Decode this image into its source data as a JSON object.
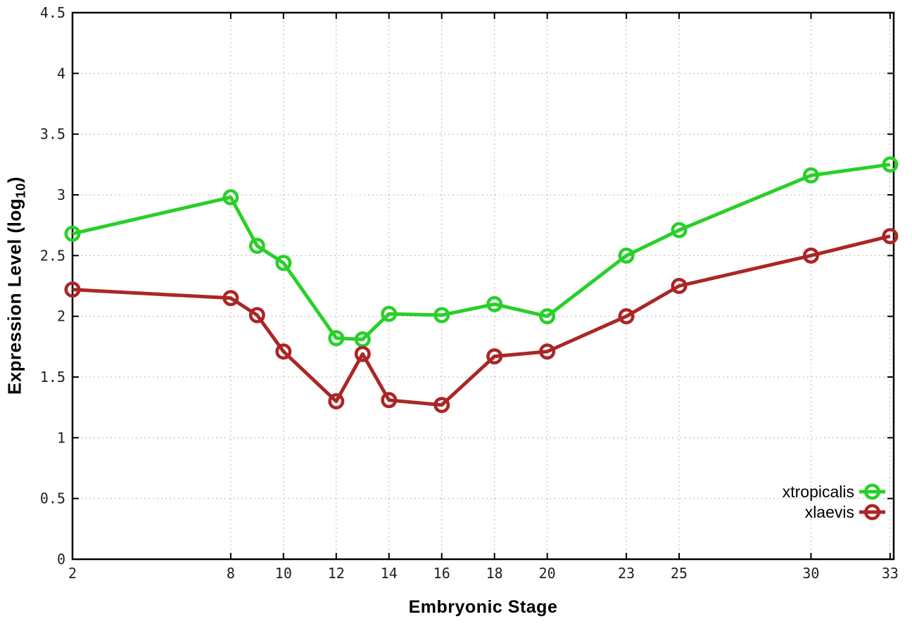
{
  "figure": {
    "xlabel": "Embryonic Stage",
    "ylabel_main": "Expression Level (log",
    "ylabel_sub": "10",
    "ylabel_close": ")"
  },
  "chart_data": {
    "type": "line",
    "title": "",
    "xlabel": "Embryonic Stage",
    "ylabel": "Expression Level (log10)",
    "x": [
      2,
      8,
      9,
      10,
      12,
      13,
      14,
      16,
      18,
      20,
      23,
      25,
      30,
      33
    ],
    "series": [
      {
        "name": "xtropicalis",
        "color": "#28d028",
        "values": [
          2.68,
          2.98,
          2.58,
          2.44,
          1.82,
          1.81,
          2.02,
          2.01,
          2.1,
          2.0,
          2.5,
          2.71,
          3.16,
          3.25
        ]
      },
      {
        "name": "xlaevis",
        "color": "#ab2626",
        "values": [
          2.22,
          2.15,
          2.01,
          1.71,
          1.3,
          1.69,
          1.31,
          1.27,
          1.67,
          1.71,
          2.0,
          2.25,
          2.5,
          2.66
        ]
      }
    ],
    "xticks": [
      2,
      8,
      10,
      12,
      14,
      16,
      18,
      20,
      23,
      25,
      30,
      33
    ],
    "yticks": [
      "0",
      "0.5",
      "1",
      "1.5",
      "2",
      "2.5",
      "3",
      "3.5",
      "4",
      "4.5"
    ],
    "ytick_values": [
      0,
      0.5,
      1,
      1.5,
      2,
      2.5,
      3,
      3.5,
      4,
      4.5
    ],
    "xlim": [
      2,
      33.15
    ],
    "ylim": [
      0,
      4.5
    ],
    "grid": true,
    "grid_style": "dotted",
    "grid_color": "#b8b8b8",
    "border_color": "#000000",
    "tick_label_color": "#1f1f1f",
    "marker": "open-circle",
    "line_width": 5,
    "marker_radius": 9.2,
    "legend_position": "bottom-right"
  }
}
